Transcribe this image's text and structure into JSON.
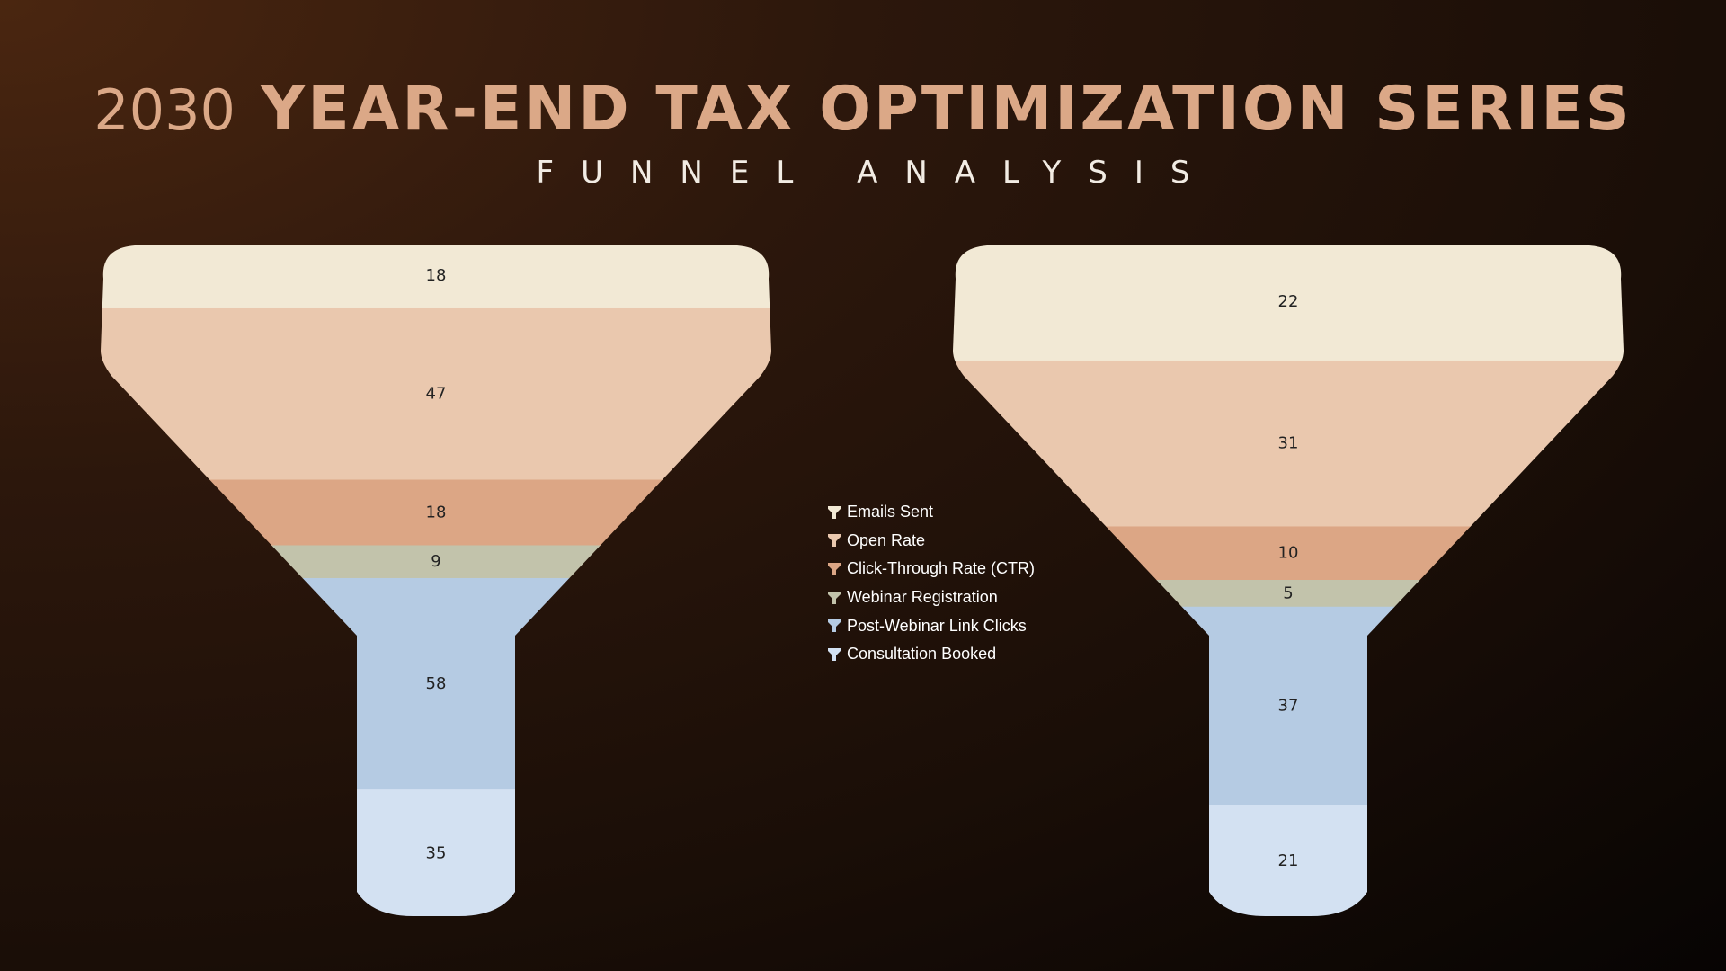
{
  "title_year": "2030",
  "title_main": "YEAR-END TAX OPTIMIZATION SERIES",
  "subtitle": "FUNNEL ANALYSIS",
  "chart_data": [
    {
      "type": "funnel",
      "categories": [
        "Emails Sent",
        "Open Rate",
        "Click-Through Rate (CTR)",
        "Webinar Registration",
        "Post-Webinar Link Clicks",
        "Consultation Booked"
      ],
      "values": [
        18,
        47,
        18,
        9,
        58,
        35
      ]
    },
    {
      "type": "funnel",
      "categories": [
        "Emails Sent",
        "Open Rate",
        "Click-Through Rate (CTR)",
        "Webinar Registration",
        "Post-Webinar Link Clicks",
        "Consultation Booked"
      ],
      "values": [
        22,
        31,
        10,
        5,
        37,
        21
      ]
    }
  ],
  "legend": {
    "placement": "center",
    "items": [
      {
        "label": "Emails Sent",
        "color": "#f2e9d5"
      },
      {
        "label": "Open Rate",
        "color": "#eac8ae"
      },
      {
        "label": "Click-Through Rate (CTR)",
        "color": "#dca685"
      },
      {
        "label": "Webinar Registration",
        "color": "#c2c3ab"
      },
      {
        "label": "Post-Webinar Link Clicks",
        "color": "#b5cbe3"
      },
      {
        "label": "Consultation Booked",
        "color": "#d3e1f2"
      }
    ]
  }
}
